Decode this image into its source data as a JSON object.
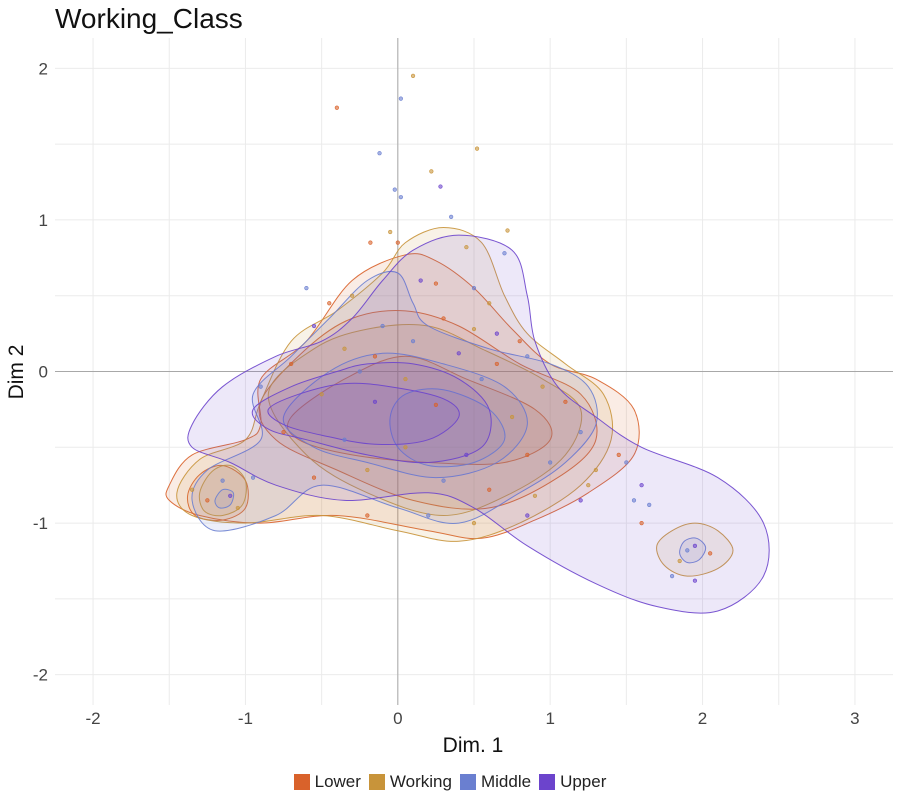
{
  "chart_data": {
    "type": "scatter",
    "title": "Working_Class",
    "xlabel": "Dim. 1",
    "ylabel": "Dim 2",
    "xlim": [
      -2.25,
      3.25
    ],
    "ylim": [
      -2.2,
      2.2
    ],
    "x_ticks": [
      -2,
      -1,
      0,
      1,
      2,
      3
    ],
    "y_ticks": [
      -2,
      -1,
      0,
      1,
      2
    ],
    "x_tick_labels": [
      "-2",
      "-1",
      "0",
      "1",
      "2",
      "3"
    ],
    "y_tick_labels": [
      "-2",
      "-1",
      "0",
      "1",
      "2"
    ],
    "grid": true,
    "legend_position": "bottom",
    "series": [
      {
        "name": "Lower",
        "color": "#D9622B",
        "contours": [
          [
            [
              -1.5,
              -0.75
            ],
            [
              -1.35,
              -0.55
            ],
            [
              -1.0,
              -0.45
            ],
            [
              -0.9,
              -0.35
            ],
            [
              -0.9,
              -0.05
            ],
            [
              -0.6,
              0.2
            ],
            [
              -0.3,
              0.6
            ],
            [
              0.05,
              0.77
            ],
            [
              0.25,
              0.73
            ],
            [
              0.5,
              0.55
            ],
            [
              0.75,
              0.28
            ],
            [
              1.0,
              0.05
            ],
            [
              1.3,
              -0.05
            ],
            [
              1.55,
              -0.25
            ],
            [
              1.55,
              -0.55
            ],
            [
              1.25,
              -0.8
            ],
            [
              0.9,
              -0.98
            ],
            [
              0.55,
              -1.1
            ],
            [
              0.2,
              -1.05
            ],
            [
              -0.4,
              -0.95
            ],
            [
              -0.9,
              -1.0
            ],
            [
              -1.3,
              -0.95
            ],
            [
              -1.5,
              -0.85
            ]
          ],
          [
            [
              -0.9,
              -0.2
            ],
            [
              -0.6,
              0.15
            ],
            [
              -0.3,
              0.35
            ],
            [
              0.05,
              0.4
            ],
            [
              0.4,
              0.3
            ],
            [
              0.8,
              0.05
            ],
            [
              1.2,
              -0.15
            ],
            [
              1.3,
              -0.45
            ],
            [
              1.05,
              -0.7
            ],
            [
              0.6,
              -0.9
            ],
            [
              0.1,
              -0.85
            ],
            [
              -0.4,
              -0.65
            ],
            [
              -0.8,
              -0.45
            ]
          ],
          [
            [
              -0.7,
              -0.3
            ],
            [
              -0.35,
              -0.05
            ],
            [
              0.05,
              0.1
            ],
            [
              0.45,
              -0.05
            ],
            [
              0.9,
              -0.25
            ],
            [
              1.0,
              -0.45
            ],
            [
              0.7,
              -0.6
            ],
            [
              0.2,
              -0.6
            ],
            [
              -0.3,
              -0.55
            ],
            [
              -0.65,
              -0.45
            ]
          ],
          [
            [
              -1.38,
              -0.82
            ],
            [
              -1.3,
              -0.68
            ],
            [
              -1.15,
              -0.62
            ],
            [
              -1.0,
              -0.72
            ],
            [
              -1.0,
              -0.9
            ],
            [
              -1.15,
              -0.98
            ],
            [
              -1.33,
              -0.95
            ]
          ]
        ]
      },
      {
        "name": "Working",
        "color": "#C8943A",
        "contours": [
          [
            [
              -1.45,
              -0.8
            ],
            [
              -1.3,
              -0.58
            ],
            [
              -1.0,
              -0.45
            ],
            [
              -0.9,
              -0.2
            ],
            [
              -0.7,
              0.2
            ],
            [
              -0.4,
              0.4
            ],
            [
              -0.1,
              0.65
            ],
            [
              0.05,
              0.85
            ],
            [
              0.3,
              0.95
            ],
            [
              0.55,
              0.85
            ],
            [
              0.7,
              0.5
            ],
            [
              0.85,
              0.25
            ],
            [
              1.1,
              0.05
            ],
            [
              1.35,
              -0.15
            ],
            [
              1.4,
              -0.45
            ],
            [
              1.2,
              -0.75
            ],
            [
              0.8,
              -1.0
            ],
            [
              0.4,
              -1.12
            ],
            [
              0.0,
              -1.05
            ],
            [
              -0.5,
              -0.95
            ],
            [
              -1.0,
              -1.0
            ],
            [
              -1.35,
              -0.95
            ]
          ],
          [
            [
              -0.85,
              -0.15
            ],
            [
              -0.55,
              0.15
            ],
            [
              -0.2,
              0.28
            ],
            [
              0.2,
              0.3
            ],
            [
              0.55,
              0.15
            ],
            [
              0.95,
              -0.05
            ],
            [
              1.2,
              -0.25
            ],
            [
              1.1,
              -0.55
            ],
            [
              0.75,
              -0.8
            ],
            [
              0.3,
              -0.95
            ],
            [
              -0.2,
              -0.8
            ],
            [
              -0.6,
              -0.55
            ]
          ],
          [
            [
              -1.3,
              -0.8
            ],
            [
              -1.22,
              -0.66
            ],
            [
              -1.1,
              -0.62
            ],
            [
              -1.0,
              -0.72
            ],
            [
              -1.02,
              -0.88
            ],
            [
              -1.15,
              -0.95
            ],
            [
              -1.27,
              -0.92
            ]
          ],
          [
            [
              1.7,
              -1.15
            ],
            [
              1.8,
              -1.05
            ],
            [
              1.95,
              -1.0
            ],
            [
              2.1,
              -1.05
            ],
            [
              2.2,
              -1.18
            ],
            [
              2.1,
              -1.3
            ],
            [
              1.9,
              -1.35
            ],
            [
              1.75,
              -1.28
            ]
          ]
        ]
      },
      {
        "name": "Middle",
        "color": "#6A7FD0",
        "contours": [
          [
            [
              -1.35,
              -0.85
            ],
            [
              -1.25,
              -0.65
            ],
            [
              -0.9,
              -0.45
            ],
            [
              -0.95,
              -0.15
            ],
            [
              -0.7,
              0.1
            ],
            [
              -0.45,
              0.35
            ],
            [
              -0.2,
              0.6
            ],
            [
              0.0,
              0.65
            ],
            [
              0.1,
              0.45
            ],
            [
              0.2,
              0.3
            ],
            [
              0.6,
              0.15
            ],
            [
              1.0,
              0.05
            ],
            [
              1.25,
              -0.1
            ],
            [
              1.3,
              -0.35
            ],
            [
              1.1,
              -0.6
            ],
            [
              0.8,
              -0.8
            ],
            [
              0.4,
              -1.0
            ],
            [
              0.0,
              -0.9
            ],
            [
              -0.5,
              -0.75
            ],
            [
              -0.8,
              -0.95
            ],
            [
              -1.2,
              -1.05
            ]
          ],
          [
            [
              -0.75,
              -0.3
            ],
            [
              -0.45,
              0.0
            ],
            [
              -0.1,
              0.12
            ],
            [
              0.3,
              0.05
            ],
            [
              0.7,
              -0.1
            ],
            [
              0.85,
              -0.35
            ],
            [
              0.65,
              -0.6
            ],
            [
              0.25,
              -0.7
            ],
            [
              -0.2,
              -0.6
            ],
            [
              -0.55,
              -0.5
            ]
          ],
          [
            [
              -0.05,
              -0.3
            ],
            [
              0.05,
              -0.15
            ],
            [
              0.3,
              -0.12
            ],
            [
              0.6,
              -0.25
            ],
            [
              0.7,
              -0.45
            ],
            [
              0.5,
              -0.6
            ],
            [
              0.2,
              -0.62
            ],
            [
              0.0,
              -0.5
            ]
          ],
          [
            [
              -1.2,
              -0.85
            ],
            [
              -1.15,
              -0.78
            ],
            [
              -1.08,
              -0.8
            ],
            [
              -1.1,
              -0.88
            ],
            [
              -1.17,
              -0.9
            ]
          ],
          [
            [
              1.85,
              -1.2
            ],
            [
              1.88,
              -1.12
            ],
            [
              1.96,
              -1.1
            ],
            [
              2.02,
              -1.16
            ],
            [
              1.98,
              -1.24
            ],
            [
              1.9,
              -1.26
            ]
          ]
        ]
      },
      {
        "name": "Upper",
        "color": "#6C44CC",
        "contours": [
          [
            [
              -1.35,
              -0.35
            ],
            [
              -1.15,
              -0.1
            ],
            [
              -0.8,
              0.1
            ],
            [
              -0.5,
              0.2
            ],
            [
              -0.3,
              0.35
            ],
            [
              -0.1,
              0.6
            ],
            [
              0.1,
              0.8
            ],
            [
              0.4,
              0.9
            ],
            [
              0.75,
              0.8
            ],
            [
              0.85,
              0.5
            ],
            [
              0.9,
              0.2
            ],
            [
              1.05,
              -0.1
            ],
            [
              1.3,
              -0.3
            ],
            [
              1.6,
              -0.5
            ],
            [
              2.1,
              -0.7
            ],
            [
              2.4,
              -1.0
            ],
            [
              2.4,
              -1.35
            ],
            [
              2.1,
              -1.58
            ],
            [
              1.7,
              -1.55
            ],
            [
              1.3,
              -1.4
            ],
            [
              0.85,
              -1.15
            ],
            [
              0.5,
              -0.9
            ],
            [
              0.2,
              -0.8
            ],
            [
              -0.35,
              -0.85
            ],
            [
              -0.8,
              -0.75
            ],
            [
              -1.1,
              -0.6
            ],
            [
              -1.35,
              -0.5
            ]
          ],
          [
            [
              -0.95,
              -0.25
            ],
            [
              -0.7,
              -0.1
            ],
            [
              -0.4,
              0.0
            ],
            [
              -0.2,
              0.05
            ],
            [
              0.1,
              0.05
            ],
            [
              0.4,
              -0.05
            ],
            [
              0.6,
              -0.25
            ],
            [
              0.55,
              -0.5
            ],
            [
              0.2,
              -0.6
            ],
            [
              -0.2,
              -0.55
            ],
            [
              -0.6,
              -0.45
            ],
            [
              -0.85,
              -0.38
            ]
          ],
          [
            [
              -0.85,
              -0.25
            ],
            [
              -0.65,
              -0.15
            ],
            [
              -0.35,
              -0.08
            ],
            [
              -0.05,
              -0.1
            ],
            [
              0.3,
              -0.18
            ],
            [
              0.4,
              -0.3
            ],
            [
              0.2,
              -0.45
            ],
            [
              -0.15,
              -0.48
            ],
            [
              -0.5,
              -0.42
            ],
            [
              -0.75,
              -0.35
            ]
          ]
        ]
      }
    ],
    "points": [
      [
        0.1,
        1.95,
        1
      ],
      [
        -0.4,
        1.74,
        0
      ],
      [
        0.02,
        1.8,
        2
      ],
      [
        0.52,
        1.47,
        1
      ],
      [
        0.22,
        1.32,
        1
      ],
      [
        -0.12,
        1.44,
        2
      ],
      [
        0.28,
        1.22,
        3
      ],
      [
        -0.02,
        1.2,
        2
      ],
      [
        0.02,
        1.15,
        2
      ],
      [
        0.35,
        1.02,
        2
      ],
      [
        0.72,
        0.93,
        1
      ],
      [
        -0.05,
        0.92,
        1
      ],
      [
        0.0,
        0.85,
        0
      ],
      [
        -0.18,
        0.85,
        0
      ],
      [
        0.45,
        0.82,
        1
      ],
      [
        0.7,
        0.78,
        2
      ],
      [
        -0.6,
        0.55,
        2
      ],
      [
        -0.45,
        0.45,
        0
      ],
      [
        -0.3,
        0.5,
        1
      ],
      [
        0.15,
        0.6,
        3
      ],
      [
        0.25,
        0.58,
        0
      ],
      [
        0.5,
        0.55,
        2
      ],
      [
        0.6,
        0.45,
        1
      ],
      [
        -0.55,
        0.3,
        3
      ],
      [
        -0.1,
        0.3,
        2
      ],
      [
        0.3,
        0.35,
        0
      ],
      [
        0.5,
        0.28,
        1
      ],
      [
        0.65,
        0.25,
        3
      ],
      [
        0.8,
        0.2,
        0
      ],
      [
        -0.35,
        0.15,
        1
      ],
      [
        -0.15,
        0.1,
        0
      ],
      [
        0.1,
        0.2,
        2
      ],
      [
        0.4,
        0.12,
        3
      ],
      [
        0.65,
        0.05,
        0
      ],
      [
        0.85,
        0.1,
        2
      ],
      [
        -0.7,
        0.05,
        0
      ],
      [
        -0.25,
        0.0,
        2
      ],
      [
        0.05,
        -0.05,
        1
      ],
      [
        0.55,
        -0.05,
        2
      ],
      [
        0.95,
        -0.1,
        1
      ],
      [
        1.1,
        -0.2,
        0
      ],
      [
        -0.9,
        -0.1,
        2
      ],
      [
        -0.5,
        -0.15,
        1
      ],
      [
        -0.15,
        -0.2,
        3
      ],
      [
        0.25,
        -0.22,
        0
      ],
      [
        0.75,
        -0.3,
        1
      ],
      [
        1.2,
        -0.4,
        2
      ],
      [
        1.45,
        -0.55,
        0
      ],
      [
        1.5,
        -0.6,
        2
      ],
      [
        1.3,
        -0.65,
        1
      ],
      [
        -0.75,
        -0.4,
        0
      ],
      [
        -0.35,
        -0.45,
        2
      ],
      [
        0.05,
        -0.5,
        1
      ],
      [
        0.45,
        -0.55,
        3
      ],
      [
        0.85,
        -0.55,
        0
      ],
      [
        1.0,
        -0.6,
        2
      ],
      [
        1.25,
        -0.75,
        1
      ],
      [
        1.55,
        -0.85,
        2
      ],
      [
        1.6,
        -0.75,
        3
      ],
      [
        -0.55,
        -0.7,
        0
      ],
      [
        -0.2,
        -0.65,
        1
      ],
      [
        0.3,
        -0.72,
        2
      ],
      [
        0.6,
        -0.78,
        0
      ],
      [
        0.9,
        -0.82,
        1
      ],
      [
        1.2,
        -0.85,
        3
      ],
      [
        -1.35,
        -0.78,
        1
      ],
      [
        -1.25,
        -0.85,
        0
      ],
      [
        -1.1,
        -0.82,
        3
      ],
      [
        -1.15,
        -0.72,
        2
      ],
      [
        -1.05,
        -0.9,
        1
      ],
      [
        -0.95,
        -0.7,
        2
      ],
      [
        -0.2,
        -0.95,
        0
      ],
      [
        0.2,
        -0.95,
        2
      ],
      [
        0.5,
        -1.0,
        1
      ],
      [
        0.85,
        -0.95,
        3
      ],
      [
        1.65,
        -0.88,
        2
      ],
      [
        1.6,
        -1.0,
        0
      ],
      [
        1.9,
        -1.18,
        2
      ],
      [
        1.95,
        -1.15,
        3
      ],
      [
        1.85,
        -1.25,
        1
      ],
      [
        2.05,
        -1.2,
        0
      ],
      [
        1.8,
        -1.35,
        2
      ],
      [
        1.95,
        -1.38,
        3
      ]
    ]
  }
}
